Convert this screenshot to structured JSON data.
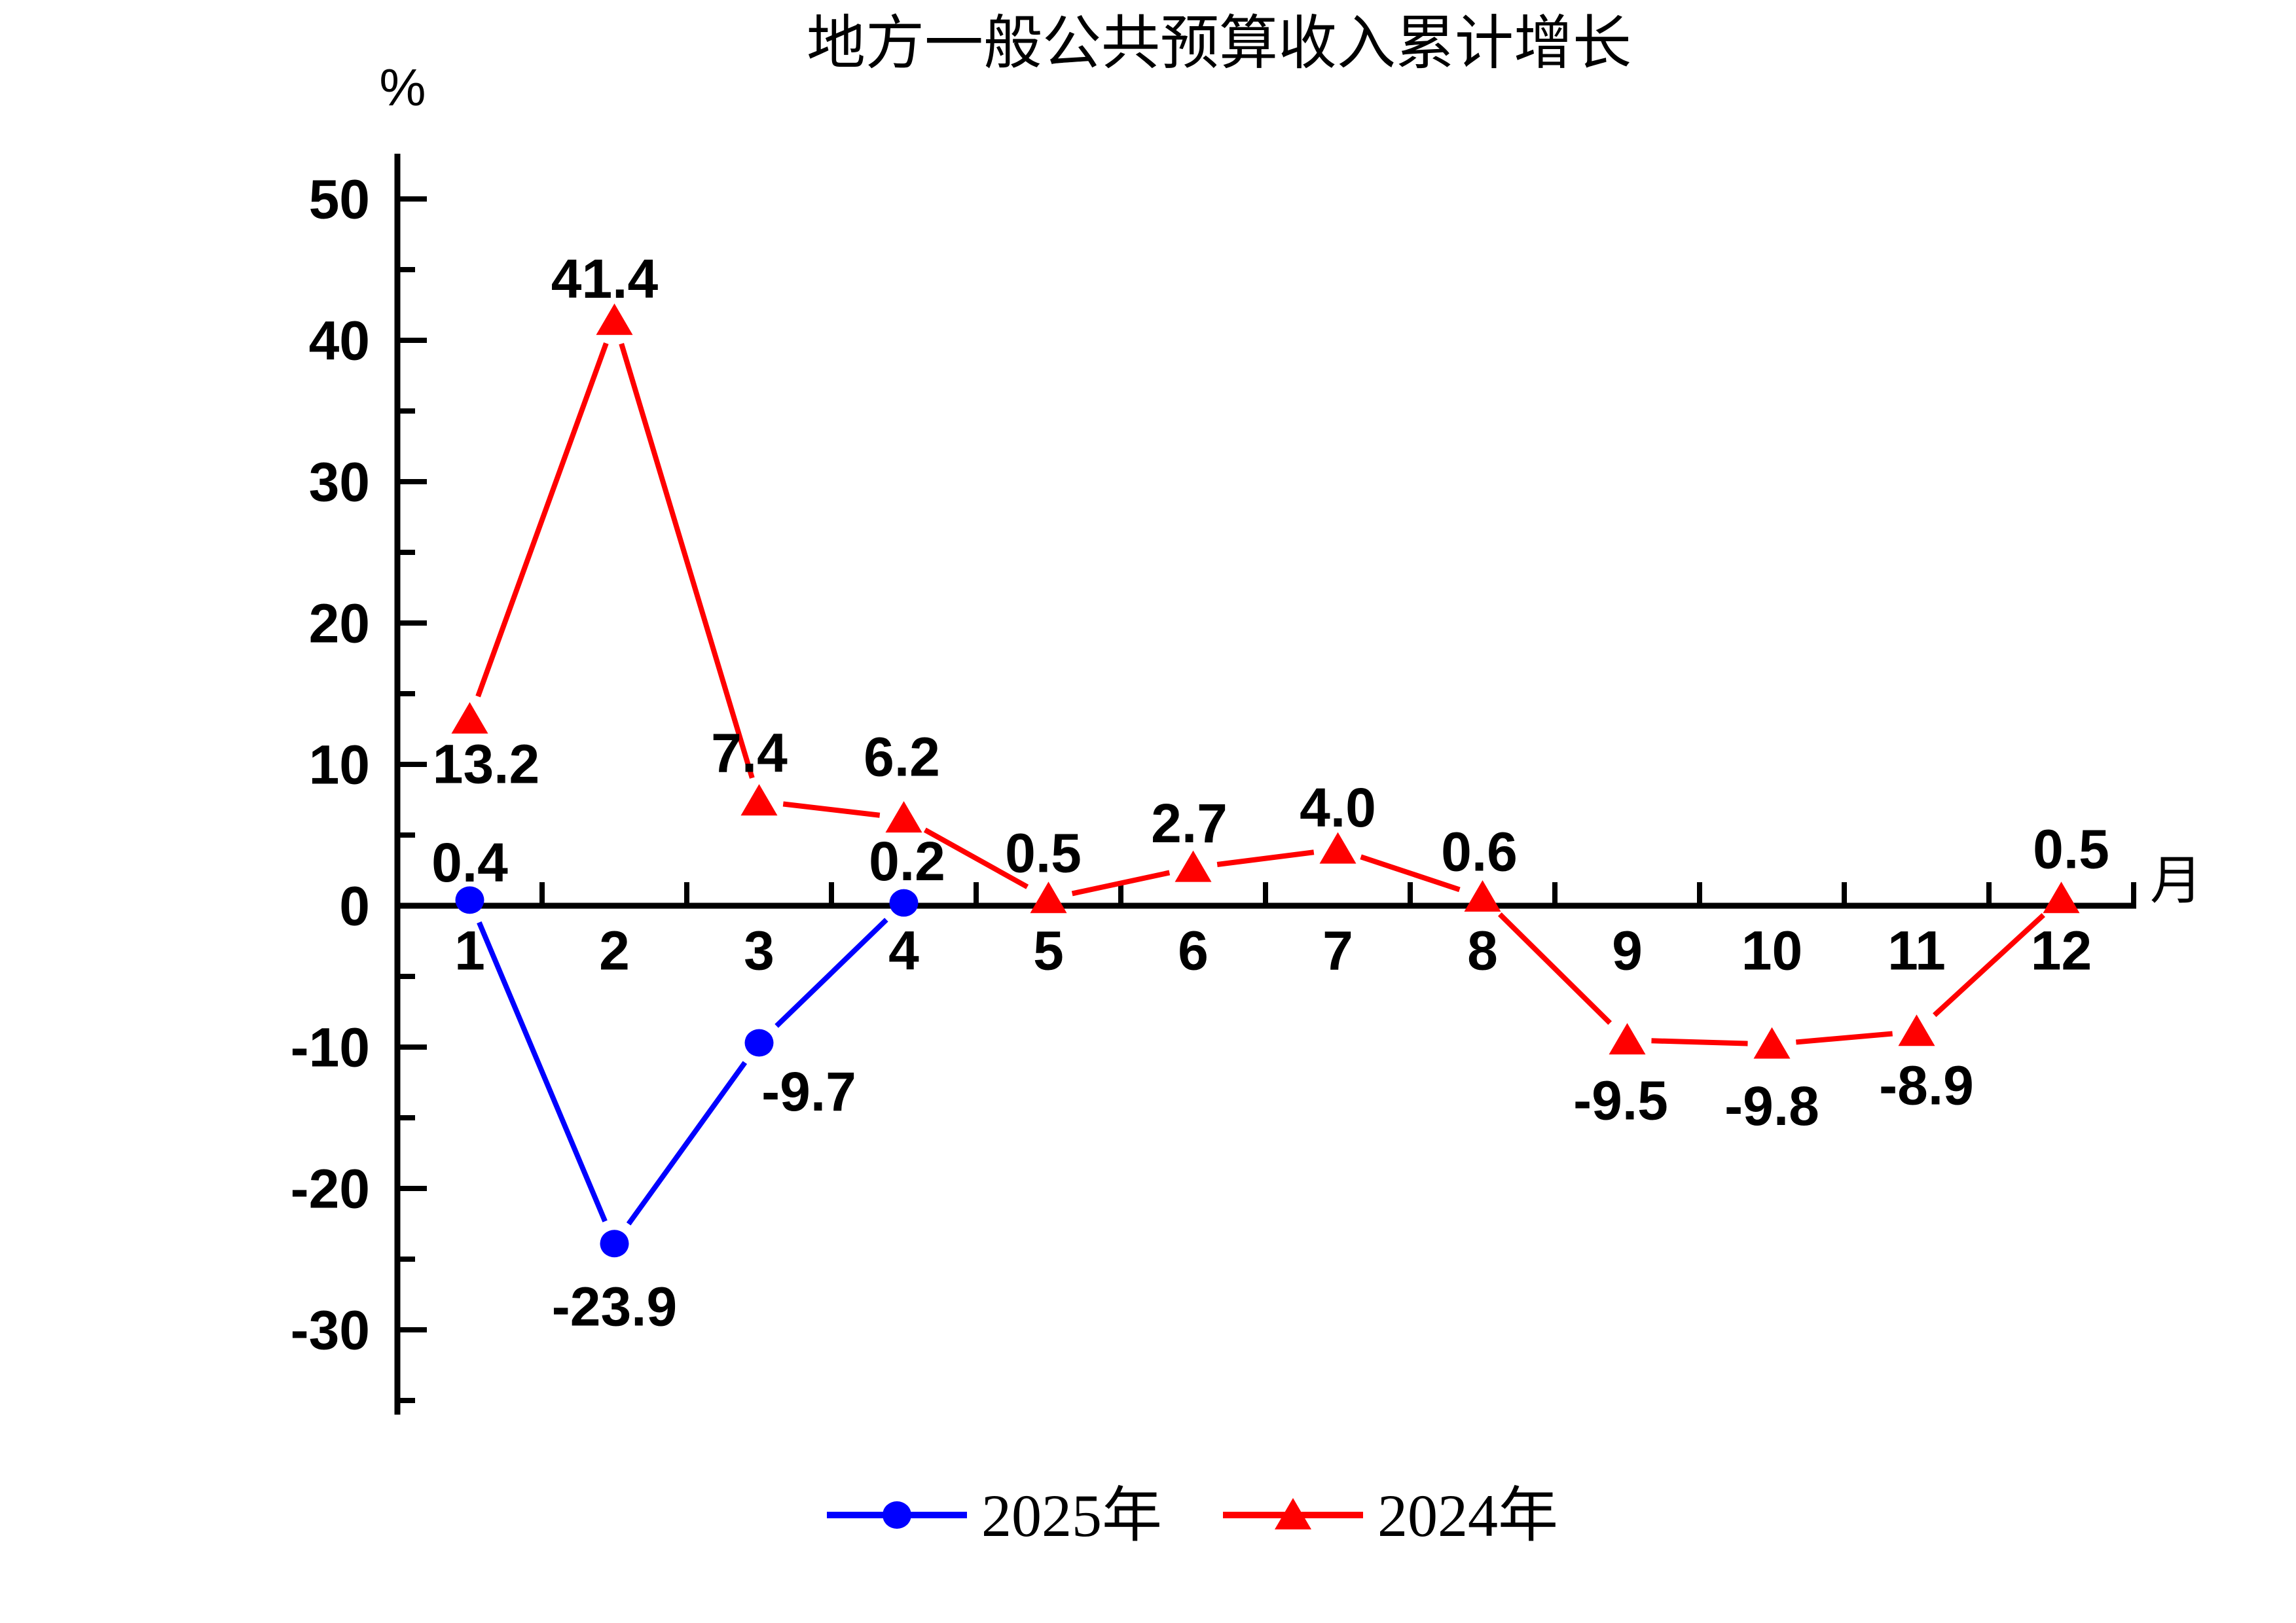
{
  "chart_data": {
    "type": "line",
    "title": "地方一般公共预算收入累计增长",
    "y_axis": {
      "unit": "%",
      "tick_values": [
        50,
        40,
        30,
        20,
        10,
        0,
        -10,
        -20,
        -30
      ],
      "tick_labels": [
        "50",
        "40",
        "30",
        "20",
        "10",
        "0",
        "-10",
        "-20",
        "-30"
      ],
      "minor_step": 5,
      "range": [
        -36,
        53.2
      ],
      "grid": false
    },
    "x_axis": {
      "unit": "月",
      "categories": [
        "1",
        "2",
        "3",
        "4",
        "5",
        "6",
        "7",
        "8",
        "9",
        "10",
        "11",
        "12"
      ]
    },
    "series": [
      {
        "name": "2025年",
        "color": "#0000ff",
        "marker": "circle",
        "x": [
          1,
          2,
          3,
          4
        ],
        "values": [
          0.4,
          -23.9,
          -9.7,
          0.2
        ],
        "point_labels": [
          "0.4",
          "-23.9",
          "-9.7",
          "0.2"
        ],
        "label_offsets": [
          [
            0,
            -58
          ],
          [
            0,
            96
          ],
          [
            76,
            74
          ],
          [
            5,
            -64
          ]
        ]
      },
      {
        "name": "2024年",
        "color": "#ff0000",
        "marker": "triangle",
        "x": [
          1,
          2,
          3,
          4,
          5,
          6,
          7,
          8,
          9,
          10,
          11,
          12
        ],
        "values": [
          13.2,
          41.4,
          7.4,
          6.2,
          0.5,
          2.7,
          4.0,
          0.6,
          -9.5,
          -9.8,
          -8.9,
          0.5
        ],
        "point_labels": [
          "13.2",
          "41.4",
          "7.4",
          "6.2",
          "0.5",
          "2.7",
          "4.0",
          "0.6",
          "-9.5",
          "-9.8",
          "-8.9",
          "0.5"
        ],
        "label_offsets": [
          [
            25,
            68
          ],
          [
            -15,
            -64
          ],
          [
            -15,
            -74
          ],
          [
            -3,
            -94
          ],
          [
            -8,
            -70
          ],
          [
            -6,
            -68
          ],
          [
            0,
            -64
          ],
          [
            -5,
            -70
          ],
          [
            -10,
            92
          ],
          [
            0,
            94
          ],
          [
            15,
            82
          ],
          [
            15,
            -76
          ]
        ]
      }
    ],
    "legend": {
      "position": "bottom-center",
      "items": [
        {
          "label": "2025年",
          "color": "#0000ff",
          "marker": "circle"
        },
        {
          "label": "2024年",
          "color": "#ff0000",
          "marker": "triangle"
        }
      ]
    }
  }
}
